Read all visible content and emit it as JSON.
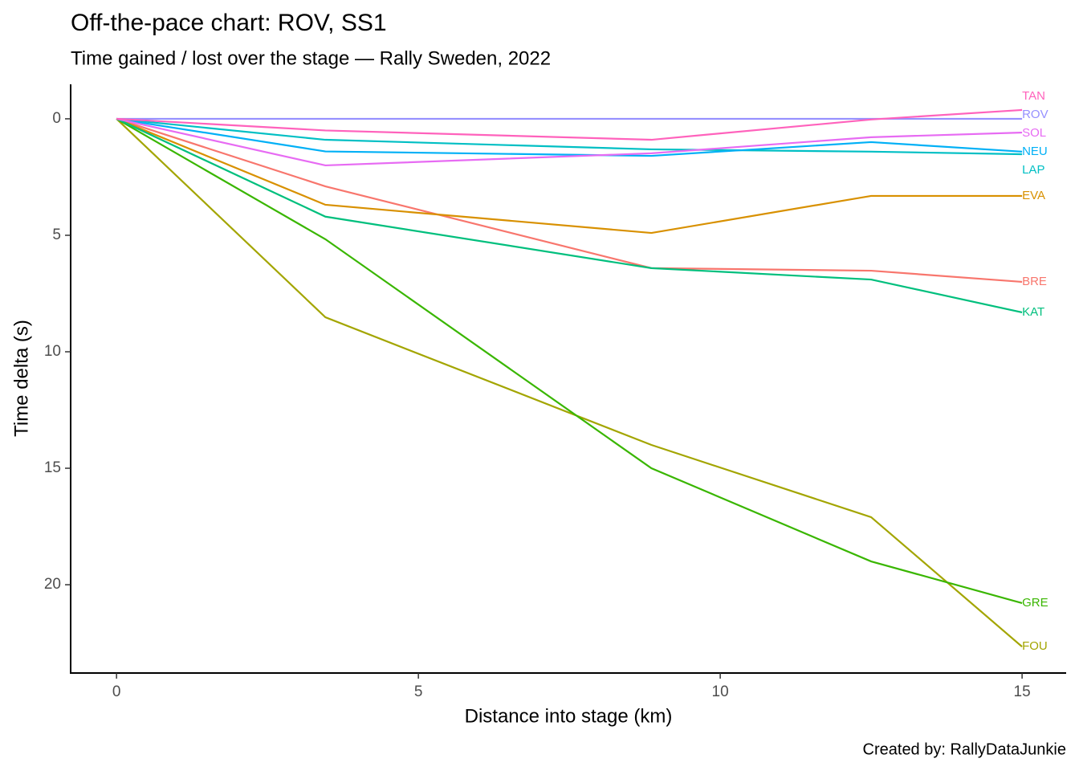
{
  "chart_data": {
    "type": "line",
    "title": "Off-the-pace chart: ROV, SS1",
    "subtitle": "Time gained / lost over the stage — Rally Sweden, 2022",
    "x_label": "Distance into stage (km)",
    "y_label": "Time delta (s)",
    "caption": "Created by: RallyDataJunkie",
    "x": [
      0,
      3.46,
      8.86,
      12.5,
      15
    ],
    "xlim": [
      -0.76,
      15.73
    ],
    "xticks": [
      0,
      5,
      10,
      15
    ],
    "ylim": [
      -1.48,
      23.79
    ],
    "yticks": [
      0,
      5,
      10,
      15,
      20
    ],
    "y_reversed": true,
    "grid": false,
    "series": [
      {
        "name": "BRE",
        "color": "#F8766D",
        "values": [
          0,
          2.9,
          6.41,
          6.52,
          7.0
        ]
      },
      {
        "name": "EVA",
        "color": "#D89000",
        "values": [
          0,
          3.69,
          4.9,
          3.31,
          3.31
        ]
      },
      {
        "name": "FOU",
        "color": "#A3A500",
        "values": [
          0,
          8.52,
          14.0,
          17.1,
          22.66
        ]
      },
      {
        "name": "GRE",
        "color": "#39B600",
        "values": [
          0,
          5.17,
          15.0,
          19.0,
          20.79
        ]
      },
      {
        "name": "KAT",
        "color": "#00BF7D",
        "values": [
          0,
          4.2,
          6.41,
          6.9,
          8.31
        ]
      },
      {
        "name": "LAP",
        "color": "#00BFC4",
        "values": [
          0,
          0.9,
          1.31,
          1.41,
          1.52
        ]
      },
      {
        "name": "NEU",
        "color": "#00B0F6",
        "values": [
          0,
          1.4,
          1.59,
          1.0,
          1.41
        ]
      },
      {
        "name": "ROV",
        "color": "#9590FF",
        "values": [
          0,
          0,
          0,
          0,
          0
        ]
      },
      {
        "name": "SOL",
        "color": "#E76BF3",
        "values": [
          0,
          2.0,
          1.48,
          0.79,
          0.59
        ]
      },
      {
        "name": "TAN",
        "color": "#FF62BC",
        "values": [
          0,
          0.5,
          0.9,
          0.03,
          -0.38
        ]
      }
    ]
  }
}
